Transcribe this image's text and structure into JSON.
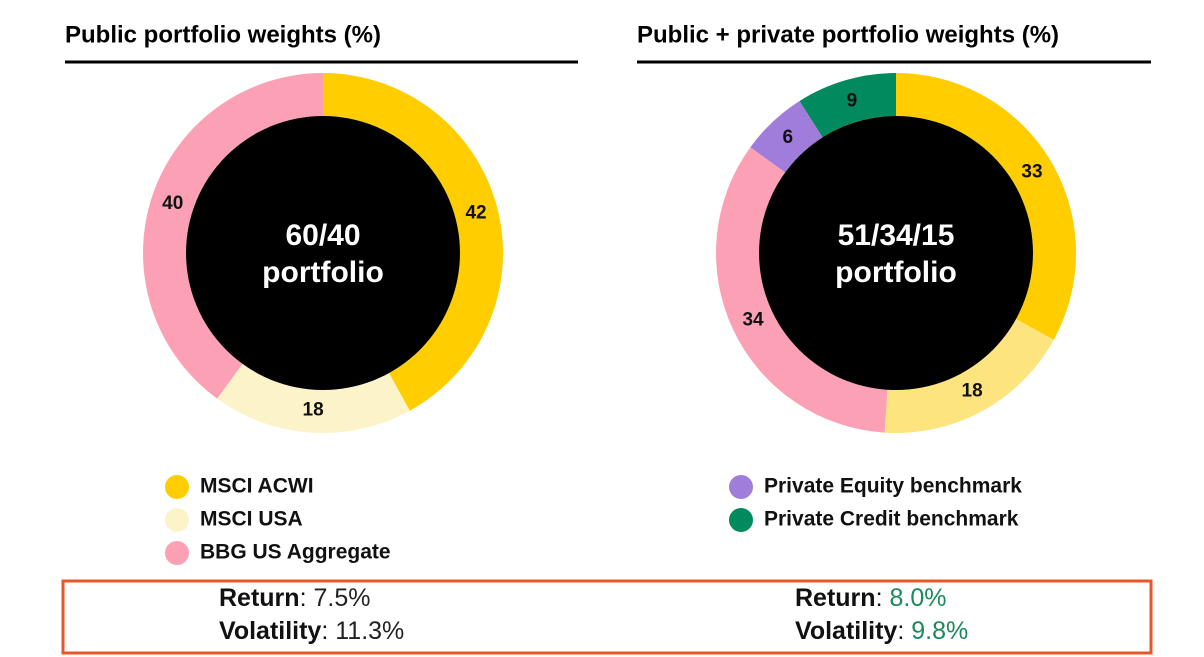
{
  "chart_data": [
    {
      "type": "pie",
      "title": "Public portfolio weights (%)",
      "center_label": [
        "60/40",
        "portfolio"
      ],
      "categories": [
        "MSCI ACWI",
        "MSCI USA",
        "BBG US Aggregate"
      ],
      "values": [
        42,
        18,
        40
      ],
      "colors": [
        "#ffcd00",
        "#fdf3c8",
        "#fca0b6"
      ],
      "stats": [
        {
          "label": "Return",
          "value": "7.5%"
        },
        {
          "label": "Volatility",
          "value": "11.3%"
        }
      ],
      "stats_color": "#222222"
    },
    {
      "type": "pie",
      "title": "Public + private portfolio weights (%)",
      "center_label": [
        "51/34/15",
        "portfolio"
      ],
      "categories": [
        null,
        null,
        null,
        "Private Equity benchmark",
        "Private Credit benchmark"
      ],
      "values": [
        33,
        18,
        34,
        6,
        9
      ],
      "colors": [
        "#ffcd00",
        "#fde47f",
        "#fca0b6",
        "#a07ddb",
        "#008a5e"
      ],
      "stats": [
        {
          "label": "Return",
          "value": "8.0%"
        },
        {
          "label": "Volatility",
          "value": "9.8%"
        }
      ],
      "stats_color": "#1a8a5a"
    }
  ]
}
